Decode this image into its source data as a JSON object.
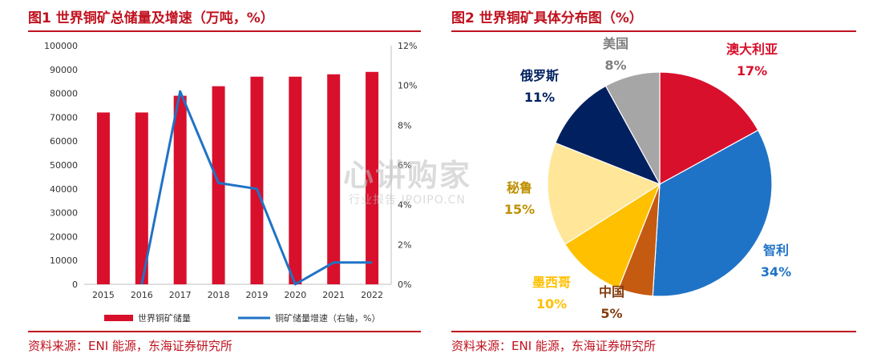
{
  "left_panel": {
    "title": "图1 世界铜矿总储量及增速（万吨，%）",
    "source": "资料来源：ENI 能源，东海证券研究所"
  },
  "right_panel": {
    "title": "图2 世界铜矿具体分布图（%）",
    "source": "资料来源：ENI 能源，东海证券研究所"
  },
  "watermark": {
    "main": "心讲购家",
    "sub": "行业报告 IPOIPO.CN"
  },
  "chart_data": [
    {
      "type": "bar",
      "categories": [
        "2015",
        "2016",
        "2017",
        "2018",
        "2019",
        "2020",
        "2021",
        "2022"
      ],
      "series": [
        {
          "name": "世界铜矿储量",
          "type": "bar",
          "axis": "left",
          "color": "#d8102c",
          "values": [
            72000,
            72000,
            79000,
            83000,
            87000,
            87000,
            88000,
            89000
          ]
        },
        {
          "name": "铜矿储量增速（右轴，%）",
          "type": "line",
          "axis": "right",
          "color": "#1f73c6",
          "values": [
            null,
            0.0,
            9.7,
            5.1,
            4.8,
            0.0,
            1.1,
            1.1
          ]
        }
      ],
      "left_axis": {
        "min": 0,
        "max": 100000,
        "step": 10000,
        "ticks": [
          "0",
          "10000",
          "20000",
          "30000",
          "40000",
          "50000",
          "60000",
          "70000",
          "80000",
          "90000",
          "100000"
        ]
      },
      "right_axis": {
        "min": 0,
        "max": 12,
        "step": 2,
        "ticks": [
          "0%",
          "2%",
          "4%",
          "6%",
          "8%",
          "10%",
          "12%"
        ]
      },
      "legend_position": "bottom"
    },
    {
      "type": "pie",
      "slices": [
        {
          "label": "澳大利亚",
          "value": 17,
          "text": "17%",
          "color": "#d8102c",
          "label_color": "#d8102c"
        },
        {
          "label": "智利",
          "value": 34,
          "text": "34%",
          "color": "#1f73c6",
          "label_color": "#1f73c6"
        },
        {
          "label": "中国",
          "value": 5,
          "text": "5%",
          "color": "#c55a11",
          "label_color": "#843c0c"
        },
        {
          "label": "墨西哥",
          "value": 10,
          "text": "10%",
          "color": "#ffc000",
          "label_color": "#ffc000"
        },
        {
          "label": "秘鲁",
          "value": 15,
          "text": "15%",
          "color": "#ffe699",
          "label_color": "#bf9000"
        },
        {
          "label": "俄罗斯",
          "value": 11,
          "text": "11%",
          "color": "#002060",
          "label_color": "#002060"
        },
        {
          "label": "美国",
          "value": 8,
          "text": "8%",
          "color": "#a6a6a6",
          "label_color": "#7f7f7f"
        }
      ]
    }
  ]
}
